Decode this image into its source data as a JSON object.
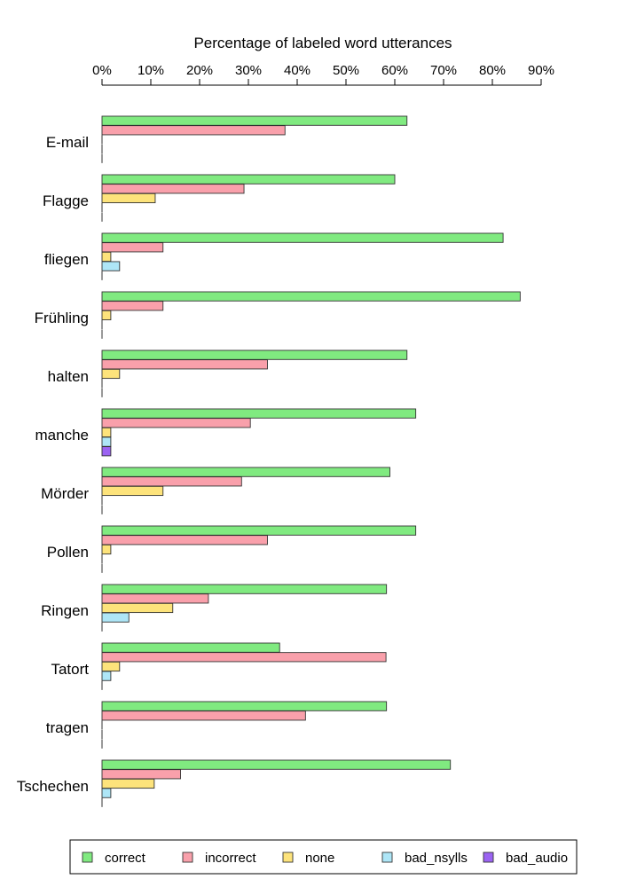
{
  "chart_data": {
    "type": "bar",
    "orientation": "horizontal",
    "title": "Percentage of labeled word utterances",
    "xlabel": "Percentage of labeled word utterances",
    "ylabel": "",
    "xlim": [
      0,
      90
    ],
    "x_ticks": [
      0,
      10,
      20,
      30,
      40,
      50,
      60,
      70,
      80,
      90
    ],
    "x_tick_labels": [
      "0%",
      "10%",
      "20%",
      "30%",
      "40%",
      "50%",
      "60%",
      "70%",
      "80%",
      "90%"
    ],
    "grid": false,
    "legend_position": "bottom",
    "categories": [
      "E-mail",
      "Flagge",
      "fliegen",
      "Frühling",
      "halten",
      "manche",
      "Mörder",
      "Pollen",
      "Ringen",
      "Tatort",
      "tragen",
      "Tschechen"
    ],
    "series": [
      {
        "name": "correct",
        "color": "#80ea80",
        "values": [
          62.5,
          60.0,
          82.2,
          85.7,
          62.5,
          64.3,
          59.0,
          64.3,
          58.3,
          36.4,
          58.3,
          71.4
        ]
      },
      {
        "name": "incorrect",
        "color": "#f9a0ab",
        "values": [
          37.5,
          29.1,
          12.5,
          12.5,
          33.9,
          30.4,
          28.6,
          33.9,
          21.8,
          58.2,
          41.7,
          16.1
        ]
      },
      {
        "name": "none",
        "color": "#fde37b",
        "values": [
          0,
          10.9,
          1.8,
          1.8,
          3.6,
          1.8,
          12.5,
          1.8,
          14.5,
          3.6,
          0,
          10.7
        ]
      },
      {
        "name": "bad_nsylls",
        "color": "#aee6f7",
        "values": [
          0,
          0,
          3.6,
          0,
          0,
          1.8,
          0,
          0,
          5.5,
          1.8,
          0,
          1.8
        ]
      },
      {
        "name": "bad_audio",
        "color": "#9b63f2",
        "values": [
          0,
          0,
          0,
          0,
          0,
          1.8,
          0,
          0,
          0,
          0,
          0,
          0
        ]
      }
    ]
  }
}
